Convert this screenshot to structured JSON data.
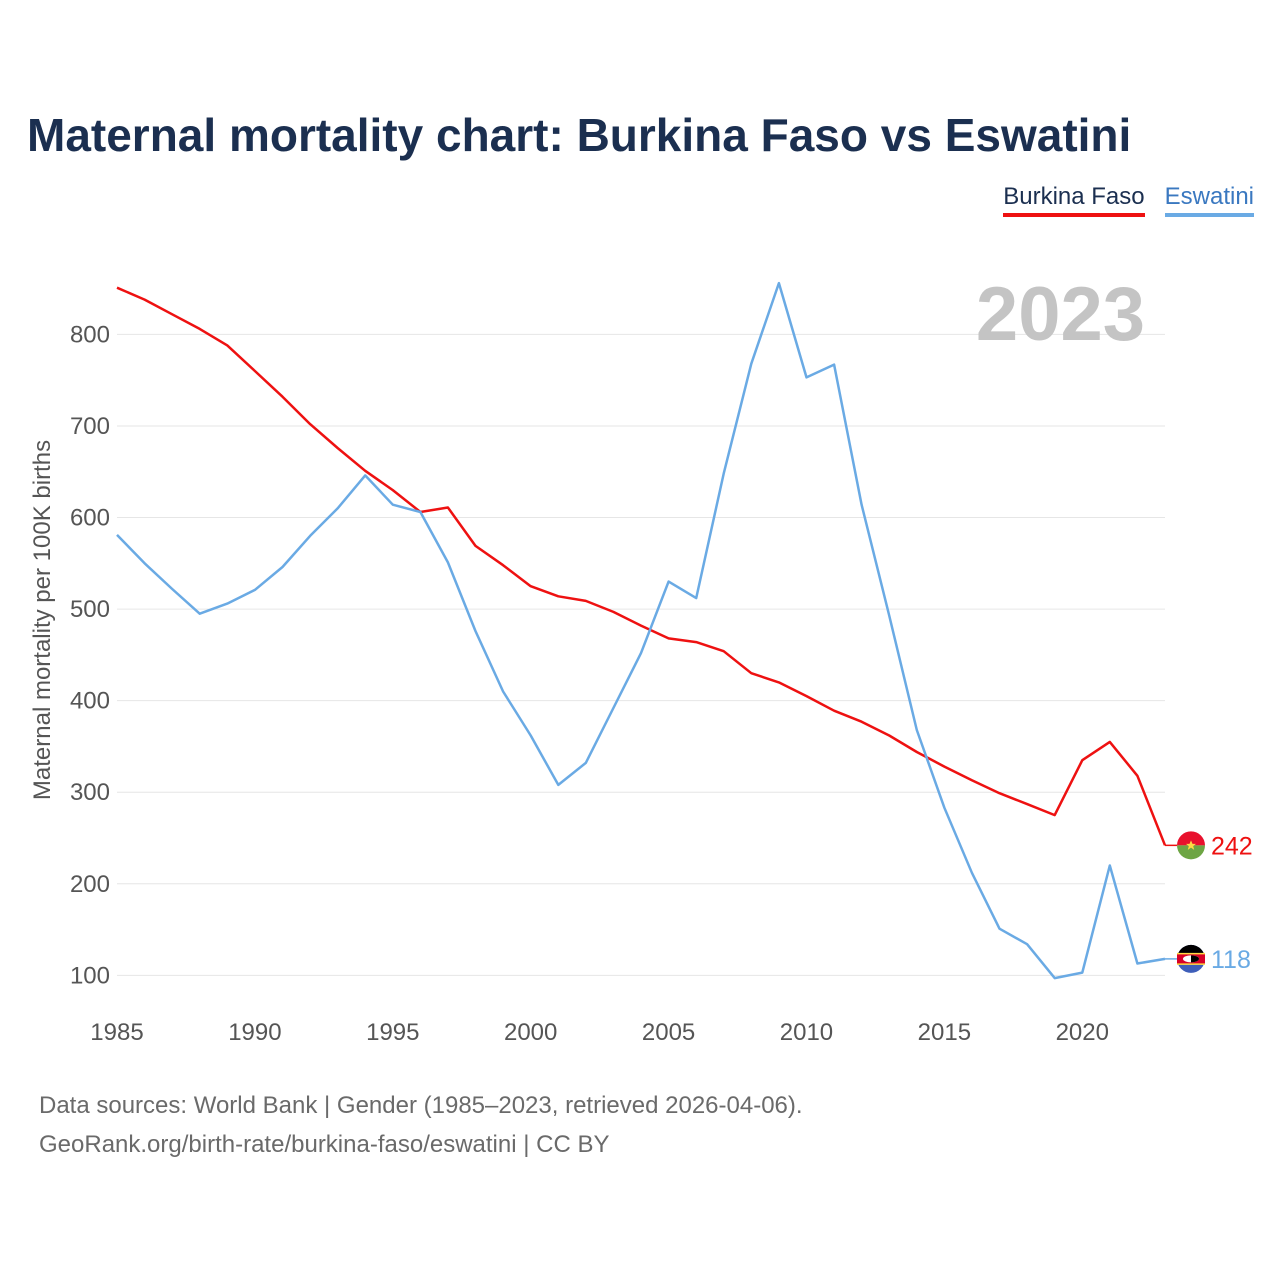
{
  "title": "Maternal mortality chart: Burkina Faso vs Eswatini",
  "footer": {
    "line1": "Data sources: World Bank | Gender (1985–2023, retrieved 2026-04-06).",
    "line2": "GeoRank.org/birth-rate/burkina-faso/eswatini | CC BY"
  },
  "chart_data": {
    "type": "line",
    "title": "Maternal mortality chart: Burkina Faso vs Eswatini",
    "ylabel": "Maternal mortality per 100K births",
    "xlabel": "",
    "current_year_label": "2023",
    "xlim": [
      1985,
      2023
    ],
    "ylim": [
      60,
      890
    ],
    "x_ticks": [
      1985,
      1990,
      1995,
      2000,
      2005,
      2010,
      2015,
      2020
    ],
    "y_ticks": [
      100,
      200,
      300,
      400,
      500,
      600,
      700,
      800
    ],
    "grid": true,
    "legend_position": "top-right",
    "x": [
      1985,
      1986,
      1987,
      1988,
      1989,
      1990,
      1991,
      1992,
      1993,
      1994,
      1995,
      1996,
      1997,
      1998,
      1999,
      2000,
      2001,
      2002,
      2003,
      2004,
      2005,
      2006,
      2007,
      2008,
      2009,
      2010,
      2011,
      2012,
      2013,
      2014,
      2015,
      2016,
      2017,
      2018,
      2019,
      2020,
      2021,
      2022,
      2023
    ],
    "series": [
      {
        "name": "Burkina Faso",
        "color": "#ee1111",
        "end_value": "242",
        "flag": "burkina-faso-flag-icon",
        "values": [
          851,
          838,
          822,
          806,
          788,
          760,
          732,
          702,
          676,
          651,
          630,
          606,
          611,
          569,
          548,
          525,
          514,
          509,
          497,
          482,
          468,
          464,
          454,
          430,
          420,
          405,
          389,
          377,
          362,
          344,
          328,
          313,
          299,
          287,
          275,
          335,
          355,
          318,
          242
        ]
      },
      {
        "name": "Eswatini",
        "color": "#6aaae4",
        "end_value": "118",
        "flag": "eswatini-flag-icon",
        "values": [
          581,
          550,
          522,
          495,
          506,
          521,
          546,
          580,
          610,
          646,
          614,
          606,
          551,
          476,
          410,
          362,
          308,
          332,
          392,
          452,
          530,
          512,
          648,
          768,
          856,
          753,
          767,
          614,
          493,
          368,
          283,
          212,
          151,
          134,
          97,
          103,
          220,
          113,
          118
        ]
      }
    ]
  }
}
